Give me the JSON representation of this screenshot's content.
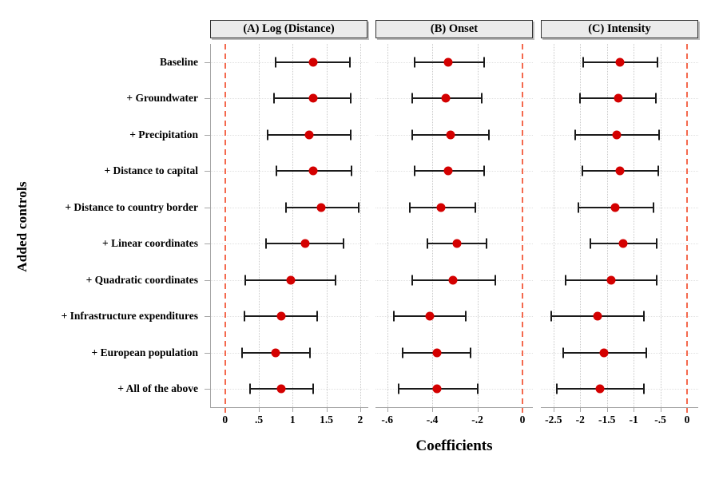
{
  "figure": {
    "x_axis_title": "Coefficients",
    "y_axis_title": "Added controls"
  },
  "chart_data": {
    "type": "scatter",
    "subtype": "coefficient-dot-and-whisker",
    "grid": "dotted",
    "legend": null,
    "categories": [
      "Baseline",
      "+ Groundwater",
      "+ Precipitation",
      "+ Distance to capital",
      "+ Distance to country border",
      "+ Linear coordinates",
      "+ Quadratic coordinates",
      "+ Infrastructure expenditures",
      "+ European population",
      "+ All of the above"
    ],
    "panels": [
      {
        "title": "(A) Log (Distance)",
        "x_tick_labels": [
          "0",
          ".5",
          "1",
          "1.5",
          "2"
        ],
        "x_tick_values": [
          0,
          0.5,
          1,
          1.5,
          2
        ],
        "x_range": [
          -0.21,
          2.12
        ],
        "zero_line_x": 0,
        "estimates": [
          1.3,
          1.3,
          1.24,
          1.3,
          1.42,
          1.18,
          0.97,
          0.83,
          0.75,
          0.83
        ],
        "ci_low": [
          0.75,
          0.73,
          0.63,
          0.76,
          0.9,
          0.61,
          0.3,
          0.29,
          0.25,
          0.37
        ],
        "ci_high": [
          1.85,
          1.86,
          1.86,
          1.87,
          1.98,
          1.75,
          1.64,
          1.36,
          1.26,
          1.3
        ]
      },
      {
        "title": "(B) Onset",
        "x_tick_labels": [
          "-.6",
          "-.4",
          "-.2",
          "0"
        ],
        "x_tick_values": [
          -0.6,
          -0.4,
          -0.2,
          0
        ],
        "x_range": [
          -0.652,
          0.046
        ],
        "zero_line_x": 0,
        "estimates": [
          -0.33,
          -0.34,
          -0.32,
          -0.33,
          -0.36,
          -0.29,
          -0.31,
          -0.41,
          -0.38,
          -0.38
        ],
        "ci_low": [
          -0.48,
          -0.49,
          -0.49,
          -0.48,
          -0.5,
          -0.42,
          -0.49,
          -0.57,
          -0.53,
          -0.55
        ],
        "ci_high": [
          -0.17,
          -0.18,
          -0.15,
          -0.17,
          -0.21,
          -0.16,
          -0.12,
          -0.25,
          -0.23,
          -0.2
        ]
      },
      {
        "title": "(C) Intensity",
        "x_tick_labels": [
          "-2.5",
          "-2",
          "-1.5",
          "-1",
          "-.5",
          "0"
        ],
        "x_tick_values": [
          -2.5,
          -2,
          -1.5,
          -1,
          -0.5,
          0
        ],
        "x_range": [
          -2.736,
          0.209
        ],
        "zero_line_x": 0,
        "estimates": [
          -1.25,
          -1.29,
          -1.31,
          -1.25,
          -1.35,
          -1.19,
          -1.42,
          -1.68,
          -1.55,
          -1.63
        ],
        "ci_low": [
          -1.94,
          -2.0,
          -2.1,
          -1.96,
          -2.04,
          -1.81,
          -2.27,
          -2.54,
          -2.32,
          -2.44
        ],
        "ci_high": [
          -0.56,
          -0.59,
          -0.52,
          -0.54,
          -0.63,
          -0.57,
          -0.57,
          -0.81,
          -0.76,
          -0.81
        ]
      }
    ]
  },
  "style_colors": {
    "point": "#d40000",
    "error_bar": "#1b1b1b",
    "zero_reference_line": "#f4694e",
    "axis_line": "#a6a6a6",
    "grid_dots": "#c9c9c9",
    "panel_header_bg": "#ebebeb",
    "panel_header_border": "#323232",
    "text": "#000000"
  }
}
